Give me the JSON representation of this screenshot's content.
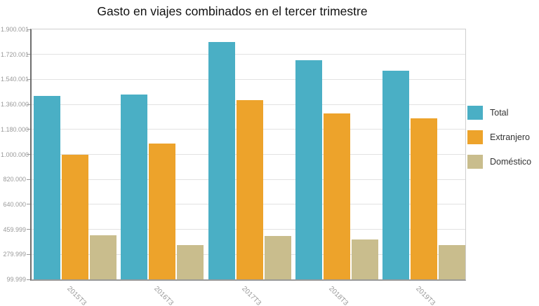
{
  "title": "Gasto en viajes combinados en el tercer trimestre",
  "chart_data": {
    "type": "bar",
    "title": "Gasto en viajes combinados en el tercer trimestre",
    "categories": [
      "2015T3",
      "2016T3",
      "2017T3",
      "2018T3",
      "2019T3"
    ],
    "series": [
      {
        "name": "Total",
        "color": "#4aafc5",
        "values": [
          1420000,
          1430000,
          1810000,
          1680000,
          1605000
        ]
      },
      {
        "name": "Extranjero",
        "color": "#eda32b",
        "values": [
          1000000,
          1080000,
          1390000,
          1295000,
          1260000
        ]
      },
      {
        "name": "Doméstico",
        "color": "#c9bd8d",
        "values": [
          420000,
          345000,
          415000,
          385000,
          345000
        ]
      }
    ],
    "xlabel": "",
    "ylabel": "",
    "grid": true,
    "legend_position": "right",
    "y_axis": {
      "min": 99999,
      "max": 1900001,
      "tick_labels": [
        "99.999",
        "279.999",
        "459.999",
        "640.000",
        "820.000",
        "1.000.000",
        "1.180.000",
        "1.360.000",
        "1.540.001",
        "1.720.001",
        "1.900.001"
      ]
    }
  }
}
